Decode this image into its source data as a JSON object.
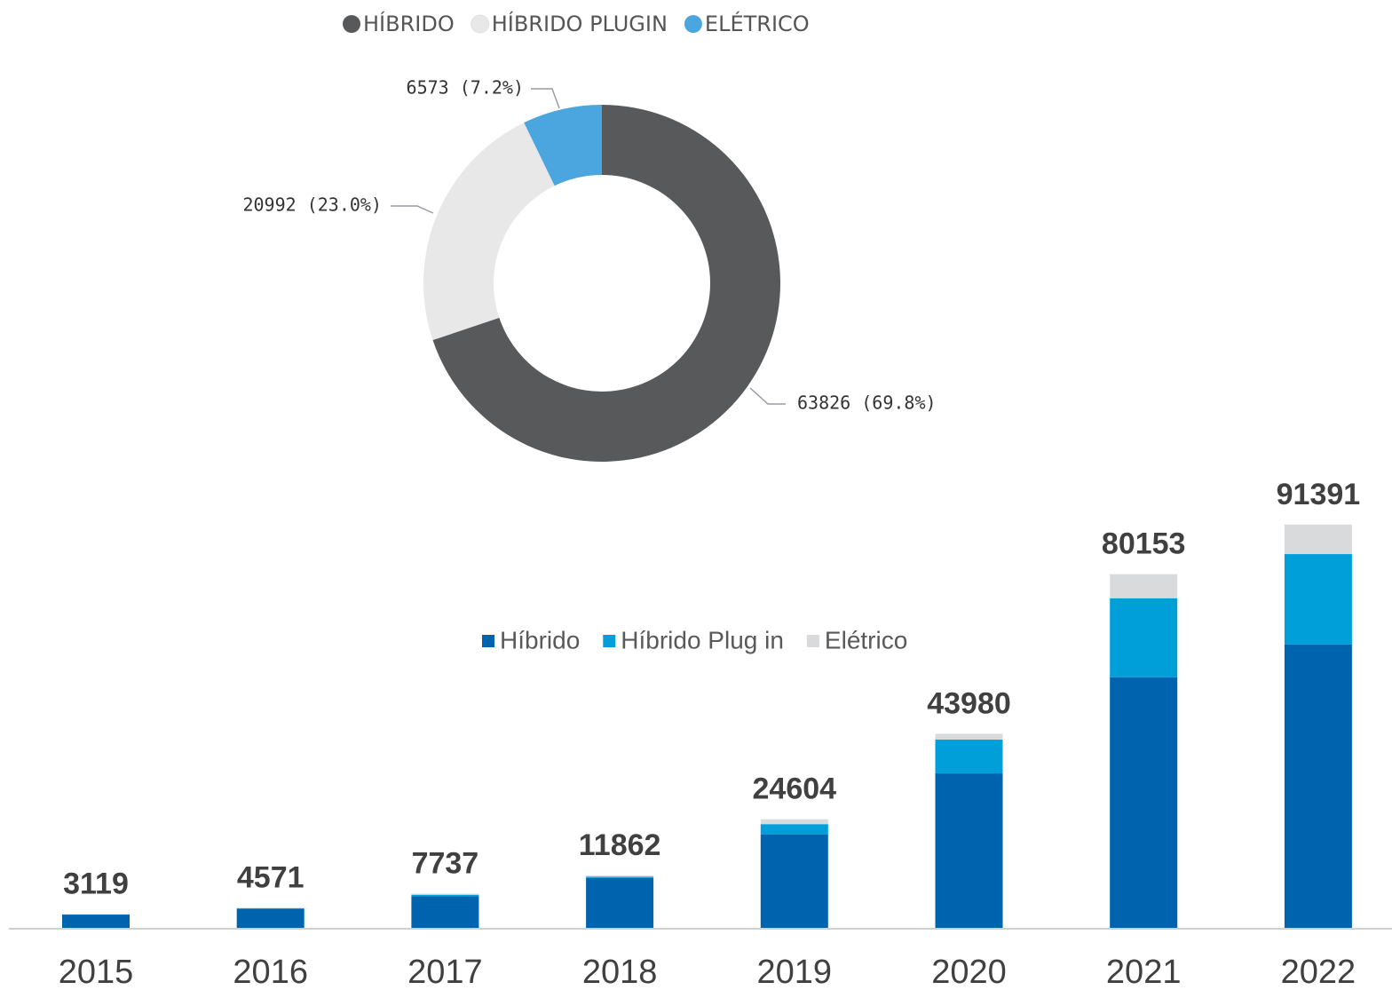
{
  "chart_data": [
    {
      "type": "donut",
      "categories": [
        "HÍBRIDO",
        "HÍBRIDO PLUGIN",
        "ELÉTRICO"
      ],
      "values": [
        63826,
        20992,
        6573
      ],
      "value_labels": [
        "63826 (69.8%)",
        "20992 (23.0%)",
        "6573 (7.2%)"
      ],
      "colors": [
        "#58595b",
        "#e8e8e8",
        "#4ba6e0"
      ],
      "legend": "top"
    },
    {
      "type": "stacked_bar",
      "categories": [
        "2015",
        "2016",
        "2017",
        "2018",
        "2019",
        "2020",
        "2021",
        "2022"
      ],
      "series": [
        {
          "name": "Híbrido",
          "color": "#0063ae",
          "values": [
            3000,
            4300,
            7200,
            11300,
            21200,
            35000,
            56800,
            64200
          ]
        },
        {
          "name": "Híbrido Plug in",
          "color": "#009fd9",
          "values": [
            60,
            150,
            300,
            300,
            2300,
            7650,
            17900,
            20500
          ]
        },
        {
          "name": "Elétrico",
          "color": "#d9dadc",
          "values": [
            59,
            121,
            237,
            262,
            1104,
            1330,
            5453,
            6691
          ]
        }
      ],
      "totals": [
        3119,
        4571,
        7737,
        11862,
        24604,
        43980,
        80153,
        91391
      ],
      "ylim": [
        0,
        100000
      ],
      "legend": "top"
    }
  ]
}
